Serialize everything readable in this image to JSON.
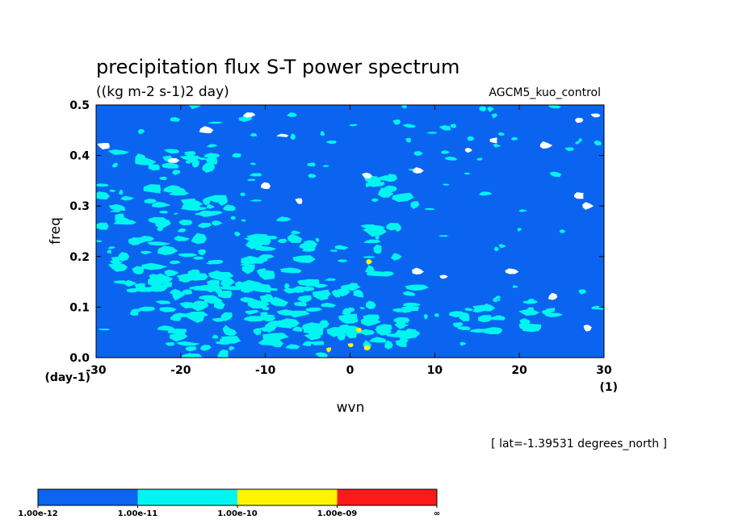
{
  "chart_data": {
    "type": "heatmap",
    "title": "precipitation flux S-T power spectrum",
    "subtitle": "((kg m-2 s-1)2 day)",
    "run_label": "AGCM5_kuo_control",
    "xlabel": "wvn",
    "ylabel": "freq",
    "x_unit": "(1)",
    "y_unit": "(day-1)",
    "xlim": [
      -30,
      30
    ],
    "ylim": [
      0.0,
      0.5
    ],
    "x_ticks": [
      "-30",
      "-20",
      "-10",
      "0",
      "10",
      "20",
      "30"
    ],
    "y_ticks": [
      "0.0",
      "0.1",
      "0.2",
      "0.3",
      "0.4",
      "0.5"
    ],
    "note": "[ lat=-1.39531 degrees_north ]",
    "colorbar": {
      "levels": [
        "1.00e-12",
        "1.00e-11",
        "1.00e-10",
        "1.00e-09",
        "∞"
      ],
      "colors": [
        "#0a64f0",
        "#00f5f0",
        "#fff500",
        "#ff1a1a"
      ]
    },
    "background_color": "#0a64f0",
    "regions": {
      "cyan_bands": [
        {
          "x": [
            -30,
            -14
          ],
          "y": [
            0.26,
            0.34
          ]
        },
        {
          "x": [
            -28,
            -4
          ],
          "y": [
            0.13,
            0.24
          ]
        },
        {
          "x": [
            -24,
            8
          ],
          "y": [
            0.04,
            0.14
          ]
        },
        {
          "x": [
            -10,
            8
          ],
          "y": [
            0.02,
            0.08
          ]
        },
        {
          "x": [
            2,
            6
          ],
          "y": [
            0.16,
            0.26
          ]
        },
        {
          "x": [
            -28,
            -14
          ],
          "y": [
            0.37,
            0.41
          ]
        },
        {
          "x": [
            12,
            26
          ],
          "y": [
            0.05,
            0.1
          ]
        },
        {
          "x": [
            2,
            8
          ],
          "y": [
            0.3,
            0.36
          ]
        },
        {
          "x": [
            -22,
            -12
          ],
          "y": [
            0.0,
            0.04
          ]
        }
      ],
      "yellow_spots": [
        {
          "x": 0.1,
          "y": 0.025
        },
        {
          "x": 1.1,
          "y": 0.055
        },
        {
          "x": -2.5,
          "y": 0.016
        },
        {
          "x": 2.2,
          "y": 0.19
        },
        {
          "x": 2.0,
          "y": 0.02
        }
      ],
      "missing_spots": [
        {
          "x": -29,
          "y": 0.42
        },
        {
          "x": -21,
          "y": 0.39
        },
        {
          "x": -17,
          "y": 0.45
        },
        {
          "x": -12,
          "y": 0.48
        },
        {
          "x": -10,
          "y": 0.34
        },
        {
          "x": -8,
          "y": 0.44
        },
        {
          "x": -6,
          "y": 0.31
        },
        {
          "x": 2,
          "y": 0.36
        },
        {
          "x": 8,
          "y": 0.37
        },
        {
          "x": 14,
          "y": 0.41
        },
        {
          "x": 17,
          "y": 0.43
        },
        {
          "x": 23,
          "y": 0.42
        },
        {
          "x": 27,
          "y": 0.47
        },
        {
          "x": 29,
          "y": 0.48
        },
        {
          "x": 28,
          "y": 0.3
        },
        {
          "x": 27,
          "y": 0.32
        },
        {
          "x": 19,
          "y": 0.17
        },
        {
          "x": 24,
          "y": 0.12
        },
        {
          "x": 28,
          "y": 0.06
        },
        {
          "x": 8,
          "y": 0.17
        },
        {
          "x": 11,
          "y": 0.16
        }
      ]
    }
  }
}
